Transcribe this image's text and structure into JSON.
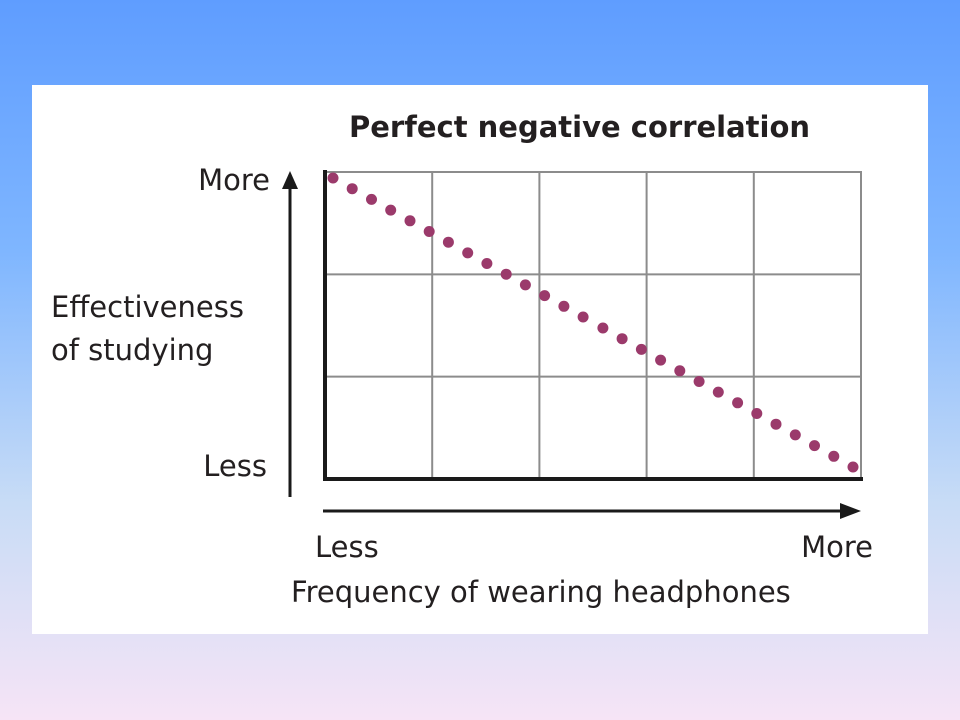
{
  "chart_data": {
    "type": "scatter",
    "title": "Perfect negative correlation",
    "xlabel": "Frequency of wearing headphones",
    "ylabel": [
      "Effectiveness",
      "of studying"
    ],
    "x_tick_labels": [
      "Less",
      "More"
    ],
    "y_tick_labels": [
      "Less",
      "More"
    ],
    "xlim": [
      0,
      1
    ],
    "ylim": [
      0,
      1
    ],
    "grid": true,
    "grid_columns": 5,
    "grid_rows": 3,
    "series": [
      {
        "color": "#9b3a6b",
        "points": [
          {
            "x": 0.0,
            "y": 1.0
          },
          {
            "x": 0.037,
            "y": 0.963
          },
          {
            "x": 0.074,
            "y": 0.926
          },
          {
            "x": 0.111,
            "y": 0.889
          },
          {
            "x": 0.148,
            "y": 0.852
          },
          {
            "x": 0.185,
            "y": 0.815
          },
          {
            "x": 0.222,
            "y": 0.778
          },
          {
            "x": 0.259,
            "y": 0.741
          },
          {
            "x": 0.296,
            "y": 0.704
          },
          {
            "x": 0.333,
            "y": 0.667
          },
          {
            "x": 0.37,
            "y": 0.63
          },
          {
            "x": 0.407,
            "y": 0.593
          },
          {
            "x": 0.444,
            "y": 0.556
          },
          {
            "x": 0.481,
            "y": 0.519
          },
          {
            "x": 0.519,
            "y": 0.481
          },
          {
            "x": 0.556,
            "y": 0.444
          },
          {
            "x": 0.593,
            "y": 0.407
          },
          {
            "x": 0.63,
            "y": 0.37
          },
          {
            "x": 0.667,
            "y": 0.333
          },
          {
            "x": 0.704,
            "y": 0.296
          },
          {
            "x": 0.741,
            "y": 0.259
          },
          {
            "x": 0.778,
            "y": 0.222
          },
          {
            "x": 0.815,
            "y": 0.185
          },
          {
            "x": 0.852,
            "y": 0.148
          },
          {
            "x": 0.889,
            "y": 0.111
          },
          {
            "x": 0.926,
            "y": 0.074
          },
          {
            "x": 0.963,
            "y": 0.037
          },
          {
            "x": 1.0,
            "y": 0.0
          }
        ]
      }
    ]
  },
  "colors": {
    "background_top": "#5f9dff",
    "background_bottom": "#f6e4f6",
    "panel": "#ffffff",
    "dots": "#9b3a6b",
    "grid": "#8c8c8c",
    "axis": "#1a1a1a",
    "text": "#231f20"
  }
}
